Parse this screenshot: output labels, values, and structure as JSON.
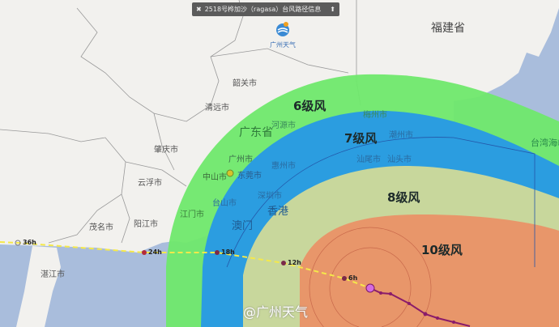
{
  "title_bar": {
    "close_icon": "close-icon",
    "text": "2518号桦加沙（ragasa）台风路径信息",
    "pin_icon": "pin-icon"
  },
  "logo": {
    "text": "广州天气"
  },
  "provinces": {
    "fujian": "福建省",
    "guangdong": "广东省"
  },
  "cities": {
    "shaoguan": "韶关市",
    "qingyuan": "清远市",
    "zhaoqing": "肇庆市",
    "yunfu": "云浮市",
    "maoming": "茂名市",
    "yangjiang": "阳江市",
    "zhanjiang": "湛江市",
    "jiangmen": "江门市",
    "guangzhou": "广州市",
    "dongguan": "东莞市",
    "zhongshan": "中山市",
    "heyuan": "河源市",
    "meizhou": "梅州市",
    "chaozhou": "潮州市",
    "shanwei": "汕尾市",
    "shantou": "汕头市",
    "shenzhen": "深圳市",
    "huizhou": "惠州市",
    "taishan": "台山市",
    "hongkong": "香港",
    "macau": "澳门",
    "taiwan_strait": "台湾海峡"
  },
  "wind_zones": [
    {
      "label": "6级风",
      "color": "#6fe86c"
    },
    {
      "label": "7级风",
      "color": "#2b9de0"
    },
    {
      "label": "8级风",
      "color": "#c8d79c"
    },
    {
      "label": "10级风",
      "color": "#e8966a"
    }
  ],
  "forecast_points": [
    "36h",
    "24h",
    "18h",
    "12h",
    "6h"
  ],
  "colors": {
    "land": "#f2f1ee",
    "sea": "#a9bddc",
    "forecast_track": "#f5e94a",
    "past_track": "#8a1c6a",
    "center": "#d46be0"
  },
  "watermark": "@广州天气"
}
